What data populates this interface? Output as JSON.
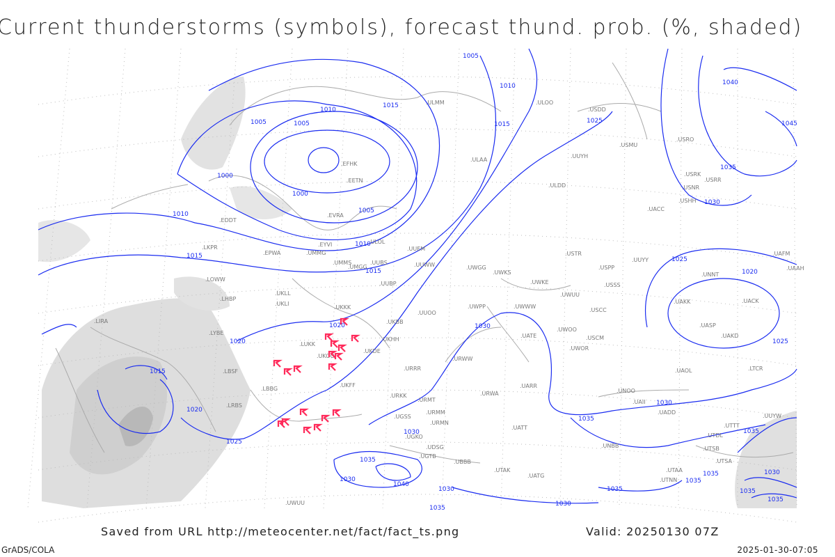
{
  "title": "Current thunderstorms (symbols), forecast thund. prob. (%, shaded)",
  "footer": {
    "saved": "Saved from URL http://meteocenter.net/fact/fact_ts.png",
    "valid": "Valid: 20250130 07Z",
    "software": "GrADS/COLA",
    "timestamp": "2025-01-30-07:05"
  },
  "colors": {
    "isobar": "#1a2cf0",
    "thunderstorm": "#ff2a5a",
    "shading": "#c8c8c8",
    "coast": "#aaaaaa"
  },
  "isobar_labels": [
    "1005",
    "1010",
    "1015",
    "1015",
    "1025",
    "1040",
    "1045",
    "1035",
    "1030",
    "1010",
    "1005",
    "1005",
    "1000",
    "1000",
    "1005",
    "1010",
    "1010",
    "1015",
    "1015",
    "1020",
    "1020",
    "1015",
    "1020",
    "1025",
    "1030",
    "1030",
    "1035",
    "1035",
    "1035",
    "1030",
    "1030",
    "1035",
    "1040",
    "1035",
    "1030",
    "1025",
    "1020",
    "1025",
    "1030",
    "1035",
    "1035",
    "1035",
    "1035",
    "1030"
  ],
  "stations": [
    "ULMM",
    "ULOO",
    "ULAA",
    "EFHK",
    "EETN",
    "EVRA",
    "ULOL",
    "UMMG",
    "EYVI",
    "UMMS",
    "UMGG",
    "UUBS",
    "UUBP",
    "UKLL",
    "UKLI",
    "UKKK",
    "UKBB",
    "UKHH",
    "UKDE",
    "UKFF",
    "UKOO",
    "LUKK",
    "LRBS",
    "LBBG",
    "LBSF",
    "LYBE",
    "LHBP",
    "LOWW",
    "EDDT",
    "EPWA",
    "LKPR",
    "LIRA",
    "UUEM",
    "UUWW",
    "UWGG",
    "UWKS",
    "UWPP",
    "UWWW",
    "UWKE",
    "UWUU",
    "UWOO",
    "UUOO",
    "URWA",
    "URWW",
    "URRR",
    "URKK",
    "URMT",
    "URMM",
    "URMN",
    "UGSS",
    "UGKO",
    "UGTB",
    "UDSG",
    "UBBB",
    "UTAK",
    "UATG",
    "UARR",
    "UATE",
    "UATT",
    "UWOR",
    "USCM",
    "USCC",
    "USSS",
    "USPP",
    "USTR",
    "UUYY",
    "UUYH",
    "ULDD",
    "USDD",
    "USMU",
    "USRO",
    "USRK",
    "USNR",
    "USRR",
    "USHH",
    "UACC",
    "UASP",
    "UACK",
    "UAKK",
    "UAKD",
    "UAOL",
    "UAII",
    "UADD",
    "UTDL",
    "UTTT",
    "UTSA",
    "UTSB",
    "UTAA",
    "UTNN",
    "UNOO",
    "UNBB",
    "UNNT",
    "UAAH",
    "UAFM",
    "LTCR",
    "UUYW",
    "UWUU"
  ]
}
